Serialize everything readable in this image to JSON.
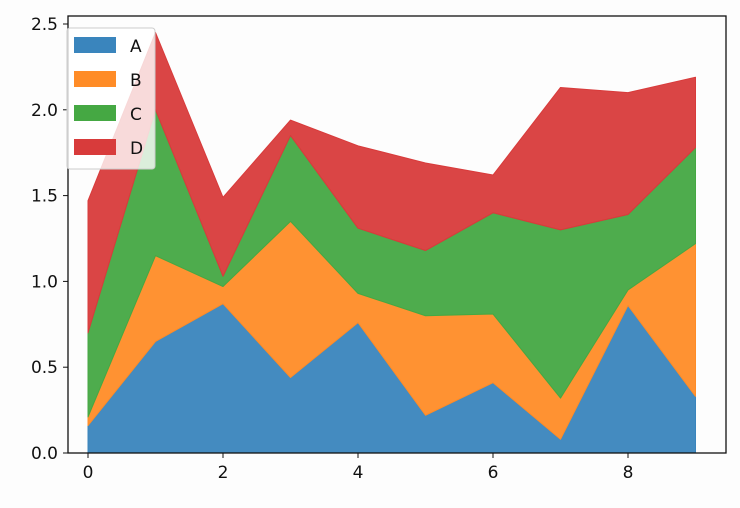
{
  "chart_data": {
    "type": "area",
    "stacked": true,
    "title": "",
    "xlabel": "",
    "ylabel": "",
    "x": [
      0,
      1,
      2,
      3,
      4,
      5,
      6,
      7,
      8,
      9
    ],
    "xlim": [
      -0.3,
      9.5
    ],
    "ylim": [
      0,
      2.55
    ],
    "xticks": [
      0,
      2,
      4,
      6,
      8
    ],
    "xtick_labels": [
      "0",
      "2",
      "4",
      "6",
      "8"
    ],
    "yticks": [
      0,
      0.5,
      1.0,
      1.5,
      2.0,
      2.5
    ],
    "ytick_labels": [
      "0.0",
      "0.5",
      "1.0",
      "1.5",
      "2.0",
      "2.5"
    ],
    "grid": false,
    "legend_position": "top-left",
    "series": [
      {
        "name": "A",
        "color": "#3a85bd",
        "values": [
          0.16,
          0.65,
          0.87,
          0.44,
          0.76,
          0.22,
          0.41,
          0.08,
          0.86,
          0.33
        ]
      },
      {
        "name": "B",
        "color": "#ff8c27",
        "values": [
          0.05,
          0.5,
          0.1,
          0.91,
          0.17,
          0.58,
          0.4,
          0.24,
          0.09,
          0.89
        ]
      },
      {
        "name": "C",
        "color": "#45a843",
        "values": [
          0.49,
          0.85,
          0.06,
          0.5,
          0.38,
          0.38,
          0.59,
          0.98,
          0.44,
          0.56
        ]
      },
      {
        "name": "D",
        "color": "#d83b3b",
        "values": [
          0.77,
          0.45,
          0.46,
          0.09,
          0.48,
          0.51,
          0.22,
          0.83,
          0.71,
          0.41
        ]
      }
    ]
  }
}
